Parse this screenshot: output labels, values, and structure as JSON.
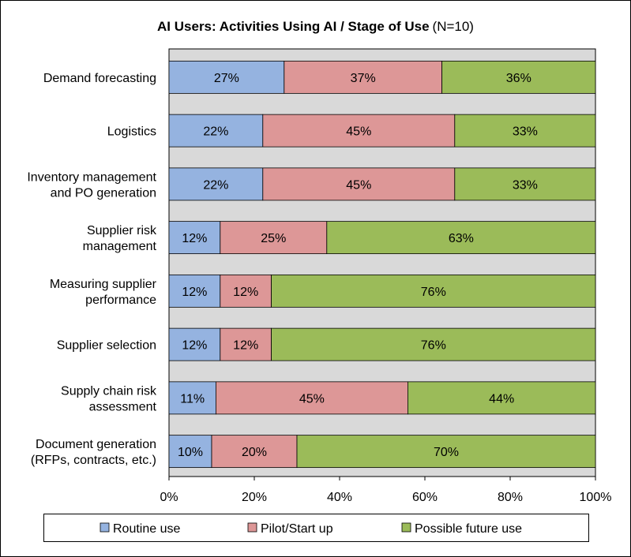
{
  "chart_data": {
    "type": "bar",
    "orientation": "horizontal",
    "stacked": "percent",
    "title": "AI Users: Activities Using AI / Stage of Use",
    "subtitle": "(N=10)",
    "categories": [
      [
        "Demand forecasting"
      ],
      [
        "Logistics"
      ],
      [
        "Inventory management",
        "and PO generation"
      ],
      [
        "Supplier risk",
        "management"
      ],
      [
        "Measuring supplier",
        "performance"
      ],
      [
        "Supplier selection"
      ],
      [
        "Supply chain risk",
        "assessment"
      ],
      [
        "Document generation",
        "(RFPs, contracts, etc.)"
      ]
    ],
    "series": [
      {
        "name": "Routine use",
        "color": "#95b3e0",
        "values": [
          27,
          22,
          22,
          12,
          12,
          12,
          11,
          10
        ],
        "labels": [
          "27%",
          "22%",
          "22%",
          "12%",
          "12%",
          "12%",
          "11%",
          "10%"
        ]
      },
      {
        "name": "Pilot/Start up",
        "color": "#dd9797",
        "values": [
          37,
          45,
          45,
          25,
          12,
          12,
          45,
          20
        ],
        "labels": [
          "37%",
          "45%",
          "45%",
          "25%",
          "12%",
          "12%",
          "45%",
          "20%"
        ]
      },
      {
        "name": "Possible future use",
        "color": "#9bbb59",
        "values": [
          36,
          33,
          33,
          63,
          76,
          76,
          44,
          70
        ],
        "labels": [
          "36%",
          "33%",
          "33%",
          "63%",
          "76%",
          "76%",
          "44%",
          "70%"
        ]
      }
    ],
    "xlim": [
      0,
      100
    ],
    "xticks": [
      "0%",
      "20%",
      "40%",
      "60%",
      "80%",
      "100%"
    ],
    "legend_position": "bottom",
    "plot_background": "#d9d9d9",
    "grid": false
  }
}
